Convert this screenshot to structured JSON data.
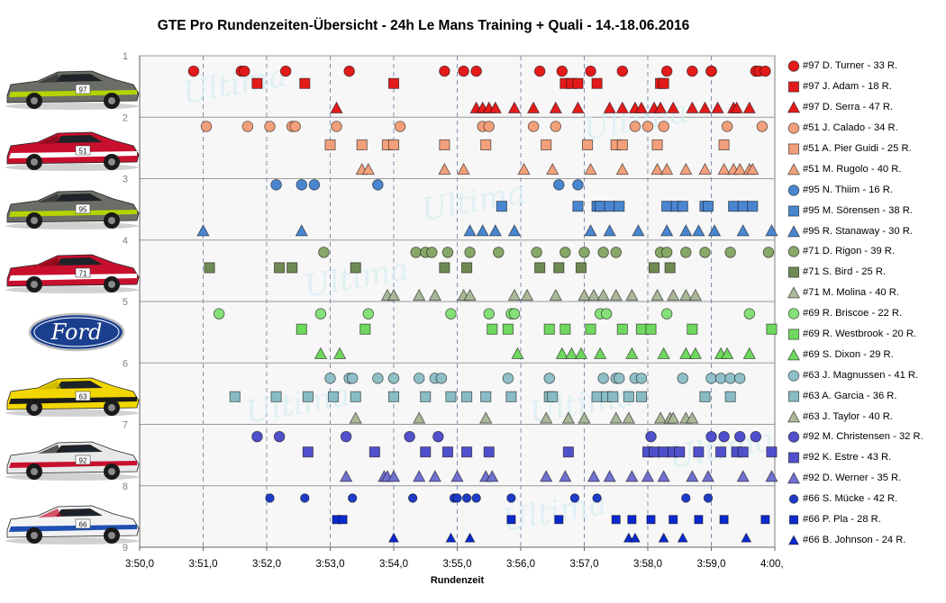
{
  "title": "GTE Pro Rundenzeiten-Übersicht  - 24h Le Mans  Training  + Quali  - 14.-18.06.2016",
  "chart_data": {
    "type": "scatter",
    "title": "GTE Pro Rundenzeiten-Übersicht  - 24h Le Mans  Training  + Quali  - 14.-18.06.2016",
    "xlabel": "Rundenzeit",
    "ylabel": "",
    "xlim": [
      230.0,
      240.0
    ],
    "ylim": [
      1,
      9
    ],
    "y_inverted": true,
    "x_tick_labels": [
      "3:50,0",
      "3:51,0",
      "3:52,0",
      "3:53,0",
      "3:54,0",
      "3:55,0",
      "3:56,0",
      "3:57,0",
      "3:58,0",
      "3:59,0",
      "4:00,0"
    ],
    "y_tick_labels": [
      "1",
      "2",
      "3",
      "4",
      "5",
      "6",
      "7",
      "8",
      "9"
    ],
    "grid": "horizontal solid, vertical dashed",
    "legend_position": "right",
    "background_text": "Ultima",
    "series": [
      {
        "name": "#97 D. Turner - 33 R.",
        "color": "#e31b1b",
        "marker": "circle",
        "y": 1.25,
        "x": [
          230.85,
          231.6,
          231.65,
          232.3,
          233.3,
          234.8,
          235.1,
          235.3,
          236.3,
          236.65,
          237.1,
          237.6,
          238.3,
          238.7,
          239.0,
          239.0,
          239.7,
          239.75,
          239.85
        ]
      },
      {
        "name": "#97 J. Adam - 18 R.",
        "color": "#e31b1b",
        "marker": "square",
        "y": 1.45,
        "x": [
          231.85,
          232.6,
          234.0,
          236.7,
          236.8,
          236.9,
          237.2,
          238.2,
          238.25
        ]
      },
      {
        "name": "#97 D. Serra - 47 R.",
        "color": "#e31b1b",
        "marker": "triangle",
        "y": 1.85,
        "x": [
          233.1,
          235.3,
          235.4,
          235.5,
          235.6,
          235.9,
          236.2,
          236.55,
          236.9,
          237.4,
          237.6,
          237.8,
          237.9,
          238.1,
          238.2,
          238.4,
          238.7,
          238.9,
          239.1,
          239.35,
          239.4,
          239.6
        ]
      },
      {
        "name": "#51 J. Calado - 34 R.",
        "color": "#f2a07b",
        "marker": "circle",
        "y": 2.15,
        "x": [
          231.05,
          231.7,
          232.05,
          232.4,
          232.45,
          233.1,
          234.1,
          235.4,
          235.5,
          236.2,
          236.55,
          237.8,
          238.0,
          238.25,
          239.25,
          239.8
        ]
      },
      {
        "name": "#51 A. Pier Guidi - 25 R.",
        "color": "#f2a07b",
        "marker": "square",
        "y": 2.45,
        "x": [
          233.0,
          233.5,
          233.9,
          234.0,
          234.8,
          235.45,
          236.4,
          237.05,
          237.5,
          237.6,
          238.15,
          239.2
        ]
      },
      {
        "name": "#51 M. Rugolo - 40 R.",
        "color": "#f2a07b",
        "marker": "triangle",
        "y": 2.85,
        "x": [
          233.5,
          233.6,
          234.8,
          235.1,
          236.05,
          236.5,
          237.1,
          237.6,
          238.15,
          238.3,
          238.6,
          238.9,
          239.2,
          239.35,
          239.45,
          239.6,
          239.65
        ]
      },
      {
        "name": "#95 N. Thiim - 16 R.",
        "color": "#4a86d0",
        "marker": "circle",
        "y": 3.1,
        "x": [
          232.15,
          232.55,
          232.75,
          233.75,
          236.6,
          236.9
        ]
      },
      {
        "name": "#95 M. Sörensen - 38 R.",
        "color": "#4a86d0",
        "marker": "square",
        "y": 3.45,
        "x": [
          235.7,
          236.9,
          237.2,
          237.25,
          237.4,
          237.55,
          238.3,
          238.45,
          238.55,
          238.9,
          238.95,
          239.35,
          239.5,
          239.65
        ]
      },
      {
        "name": "#95 R. Stanaway - 30 R.",
        "color": "#4a86d0",
        "marker": "triangle",
        "y": 3.85,
        "x": [
          231.0,
          232.55,
          235.2,
          235.4,
          235.6,
          235.9,
          237.1,
          237.4,
          237.85,
          238.3,
          238.6,
          238.8,
          239.05,
          239.5,
          239.95
        ]
      },
      {
        "name": "#71 D. Rigon - 39 R.",
        "color": "#88a868",
        "marker": "circle",
        "y": 4.2,
        "x": [
          232.9,
          234.35,
          234.5,
          234.6,
          234.85,
          235.2,
          235.65,
          236.25,
          236.7,
          237.0,
          237.3,
          237.5,
          238.2,
          238.3,
          238.6,
          238.9,
          239.3,
          239.9
        ]
      },
      {
        "name": "#71 S. Bird - 25 R.",
        "color": "#6f8a52",
        "marker": "square",
        "y": 4.45,
        "x": [
          231.1,
          232.2,
          232.4,
          233.4,
          234.8,
          235.15,
          236.3,
          236.6,
          236.95,
          238.1,
          238.35
        ]
      },
      {
        "name": "#71 M. Molina - 40 R.",
        "color": "#a8b898",
        "marker": "triangle",
        "y": 4.9,
        "x": [
          233.9,
          234.0,
          234.4,
          234.65,
          235.1,
          235.2,
          235.9,
          236.1,
          236.55,
          237.0,
          237.15,
          237.3,
          237.5,
          237.75,
          238.15,
          238.4,
          238.6,
          238.75
        ]
      },
      {
        "name": "#69 R. Briscoe - 22 R.",
        "color": "#86e07a",
        "marker": "circle",
        "y": 5.2,
        "x": [
          231.25,
          232.85,
          233.6,
          234.9,
          235.5,
          235.85,
          235.9,
          237.25,
          237.35,
          238.3,
          239.6
        ]
      },
      {
        "name": "#69 R. Westbrook - 20 R.",
        "color": "#6fd85e",
        "marker": "square",
        "y": 5.45,
        "x": [
          232.55,
          233.55,
          235.55,
          235.8,
          236.45,
          236.7,
          237.1,
          237.6,
          237.9,
          238.05,
          238.7,
          239.95
        ]
      },
      {
        "name": "#69 S. Dixon - 29 R.",
        "color": "#6fd85e",
        "marker": "triangle",
        "y": 5.85,
        "x": [
          232.85,
          233.15,
          235.95,
          236.65,
          236.8,
          236.95,
          237.25,
          237.75,
          238.25,
          238.6,
          238.75,
          239.15,
          239.25,
          239.6
        ]
      },
      {
        "name": "#63 J. Magnussen - 41 R.",
        "color": "#8fc0c8",
        "marker": "circle",
        "y": 6.25,
        "x": [
          233.0,
          233.3,
          233.35,
          233.75,
          234.0,
          234.4,
          234.65,
          234.75,
          235.8,
          236.45,
          237.3,
          237.5,
          237.55,
          237.8,
          237.9,
          238.55,
          239.0,
          239.15,
          239.3,
          239.45
        ]
      },
      {
        "name": "#63 A. Garcia - 36 R.",
        "color": "#88bcc4",
        "marker": "square",
        "y": 6.55,
        "x": [
          231.5,
          232.15,
          232.65,
          233.05,
          233.4,
          234.0,
          234.5,
          234.9,
          235.15,
          235.45,
          235.85,
          236.45,
          236.5,
          237.2,
          237.35,
          237.45,
          237.7,
          237.9,
          238.9,
          239.3
        ]
      },
      {
        "name": "#63 J. Taylor - 40 R.",
        "color": "#a8b898",
        "marker": "triangle",
        "y": 6.9,
        "x": [
          233.4,
          234.4,
          235.45,
          236.4,
          236.75,
          237.0,
          237.5,
          237.7,
          238.2,
          238.35,
          238.4,
          238.6,
          238.7
        ]
      },
      {
        "name": "#92 M. Christensen - 32 R.",
        "color": "#5050cc",
        "marker": "circle",
        "y": 7.2,
        "x": [
          231.85,
          232.2,
          233.25,
          234.25,
          234.7,
          238.05,
          239.0,
          239.2,
          239.45,
          239.7
        ]
      },
      {
        "name": "#92 K. Estre - 43 R.",
        "color": "#5050cc",
        "marker": "square",
        "y": 7.45,
        "x": [
          232.65,
          233.7,
          234.5,
          234.85,
          235.15,
          235.5,
          236.75,
          238.0,
          238.1,
          238.25,
          238.4,
          238.5,
          238.8,
          239.15,
          239.4,
          239.5,
          239.95
        ]
      },
      {
        "name": "#92 D. Werner - 35 R.",
        "color": "#7070d0",
        "marker": "triangle",
        "y": 7.85,
        "x": [
          233.25,
          233.85,
          233.9,
          234.0,
          234.4,
          234.65,
          235.0,
          235.45,
          235.55,
          236.4,
          236.7,
          237.15,
          237.4,
          237.75,
          238.0,
          238.25,
          238.7,
          238.95,
          239.5,
          239.95
        ]
      },
      {
        "name": "#66 S. Mücke - 42 R.",
        "color": "#1e3cc8",
        "marker": "circle",
        "y": 8.2,
        "x": [
          232.05,
          232.6,
          233.35,
          234.3,
          234.95,
          235.0,
          235.15,
          235.3,
          235.85,
          236.85,
          237.2,
          238.6,
          238.95
        ]
      },
      {
        "name": "#66 P. Pla - 28 R.",
        "color": "#0a2ad0",
        "marker": "square",
        "y": 8.55,
        "x": [
          233.1,
          233.2,
          235.85,
          236.6,
          237.5,
          237.75,
          238.05,
          238.4,
          238.8,
          239.2,
          239.85
        ]
      },
      {
        "name": "#66 B. Johnson - 24 R.",
        "color": "#0a2ad0",
        "marker": "triangle",
        "y": 8.85,
        "x": [
          234.0,
          234.9,
          235.2,
          237.7,
          237.8,
          238.25,
          238.55,
          239.55
        ]
      }
    ]
  },
  "cars": [
    {
      "icon": "car-aston-martin-97-icon",
      "number": "97"
    },
    {
      "icon": "car-ferrari-51-icon",
      "number": "51"
    },
    {
      "icon": "car-aston-martin-95-icon",
      "number": "95"
    },
    {
      "icon": "car-ferrari-71-icon",
      "number": "71"
    },
    {
      "icon": "ford-logo-icon",
      "text": "Ford"
    },
    {
      "icon": "car-corvette-63-icon",
      "number": "63"
    },
    {
      "icon": "car-porsche-92-icon",
      "number": "92"
    },
    {
      "icon": "car-ford-gt-66-icon",
      "number": "66"
    }
  ]
}
